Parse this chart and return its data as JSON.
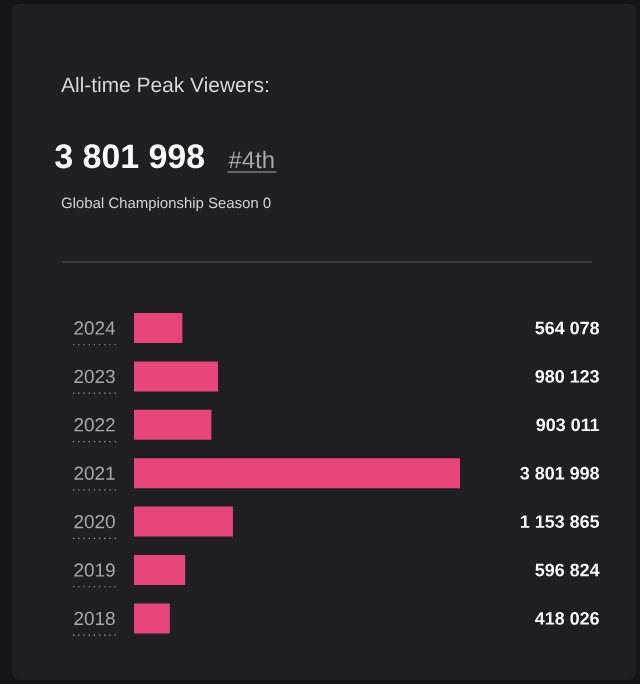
{
  "chart_data": {
    "type": "bar",
    "orientation": "horizontal",
    "title": "All-time Peak Viewers:",
    "annotations": [
      "3 801 998",
      "#4th"
    ],
    "subtitle": "Global Championship Season 0",
    "categories": [
      "2024",
      "2023",
      "2022",
      "2021",
      "2020",
      "2019",
      "2018"
    ],
    "values": [
      564078,
      980123,
      903011,
      3801998,
      1153865,
      596824,
      418026
    ],
    "value_labels": [
      "564 078",
      "980 123",
      "903 011",
      "3 801 998",
      "1 153 865",
      "596 824",
      "418 026"
    ],
    "color": "#e8457a"
  }
}
